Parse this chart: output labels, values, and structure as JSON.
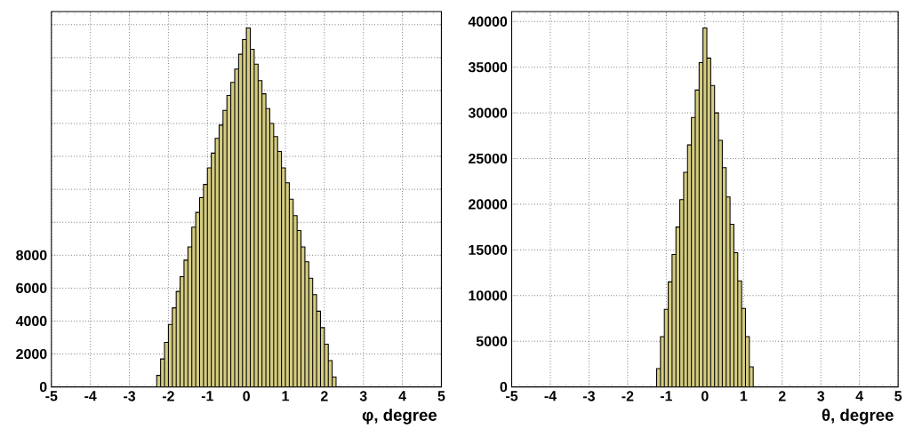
{
  "chart_data": [
    {
      "type": "histogram",
      "xlabel": "φ, degree",
      "color": "#d4cc80",
      "bins": [
        -2.3,
        -2.2,
        -2.1,
        -2.0,
        -1.9,
        -1.8,
        -1.7,
        -1.6,
        -1.5,
        -1.4,
        -1.3,
        -1.2,
        -1.1,
        -1.0,
        -0.9,
        -0.8,
        -0.7,
        -0.6,
        -0.5,
        -0.4,
        -0.3,
        -0.2,
        -0.1,
        0.0,
        0.1,
        0.2,
        0.3,
        0.4,
        0.5,
        0.6,
        0.7,
        0.8,
        0.9,
        1.0,
        1.1,
        1.2,
        1.3,
        1.4,
        1.5,
        1.6,
        1.7,
        1.8,
        1.9,
        2.0,
        2.1,
        2.2,
        2.3
      ],
      "values": [
        700,
        1700,
        2700,
        3800,
        4800,
        5800,
        6700,
        7700,
        8500,
        9700,
        10600,
        11500,
        12300,
        13300,
        14200,
        15100,
        15900,
        16800,
        17700,
        18500,
        19300,
        20200,
        21100,
        21800,
        20500,
        19600,
        18600,
        17800,
        16900,
        16000,
        15200,
        14300,
        13300,
        12400,
        11400,
        10400,
        9500,
        8500,
        7600,
        6600,
        5600,
        4600,
        3600,
        2600,
        1600,
        600
      ],
      "xlim": [
        -5,
        5
      ],
      "xticks": [
        -5,
        -4,
        -3,
        -2,
        -1,
        0,
        1,
        2,
        3,
        4,
        5
      ],
      "ylim": [
        0,
        22800
      ],
      "yticks": [
        0,
        2000,
        4000,
        6000,
        8000,
        {
          "value": 10000,
          "label": null
        },
        {
          "value": 12000,
          "label": null
        },
        {
          "value": 14000,
          "label": null
        },
        {
          "value": 16000,
          "label": null
        },
        {
          "value": 18000,
          "label": null
        },
        {
          "value": 20000,
          "label": null
        },
        {
          "value": 22000,
          "label": null
        }
      ],
      "grid": true
    },
    {
      "type": "histogram",
      "xlabel": "θ, degree",
      "color": "#d4cc80",
      "bins": [
        -1.25,
        -1.15,
        -1.05,
        -0.95,
        -0.85,
        -0.75,
        -0.65,
        -0.55,
        -0.45,
        -0.35,
        -0.25,
        -0.15,
        -0.05,
        0.05,
        0.15,
        0.25,
        0.35,
        0.45,
        0.55,
        0.65,
        0.75,
        0.85,
        0.95,
        1.05,
        1.15,
        1.25
      ],
      "values": [
        2000,
        5500,
        8500,
        11500,
        14500,
        17500,
        20500,
        23500,
        26500,
        29500,
        32500,
        35500,
        39300,
        36000,
        33000,
        30000,
        27000,
        24000,
        20800,
        17800,
        14700,
        11600,
        8600,
        5500,
        2200
      ],
      "xlim": [
        -5,
        5
      ],
      "xticks": [
        -5,
        -4,
        -3,
        -2,
        -1,
        0,
        1,
        2,
        3,
        4,
        5
      ],
      "ylim": [
        0,
        41100
      ],
      "yticks": [
        0,
        5000,
        10000,
        15000,
        20000,
        25000,
        30000,
        35000,
        40000
      ],
      "grid": true
    }
  ]
}
